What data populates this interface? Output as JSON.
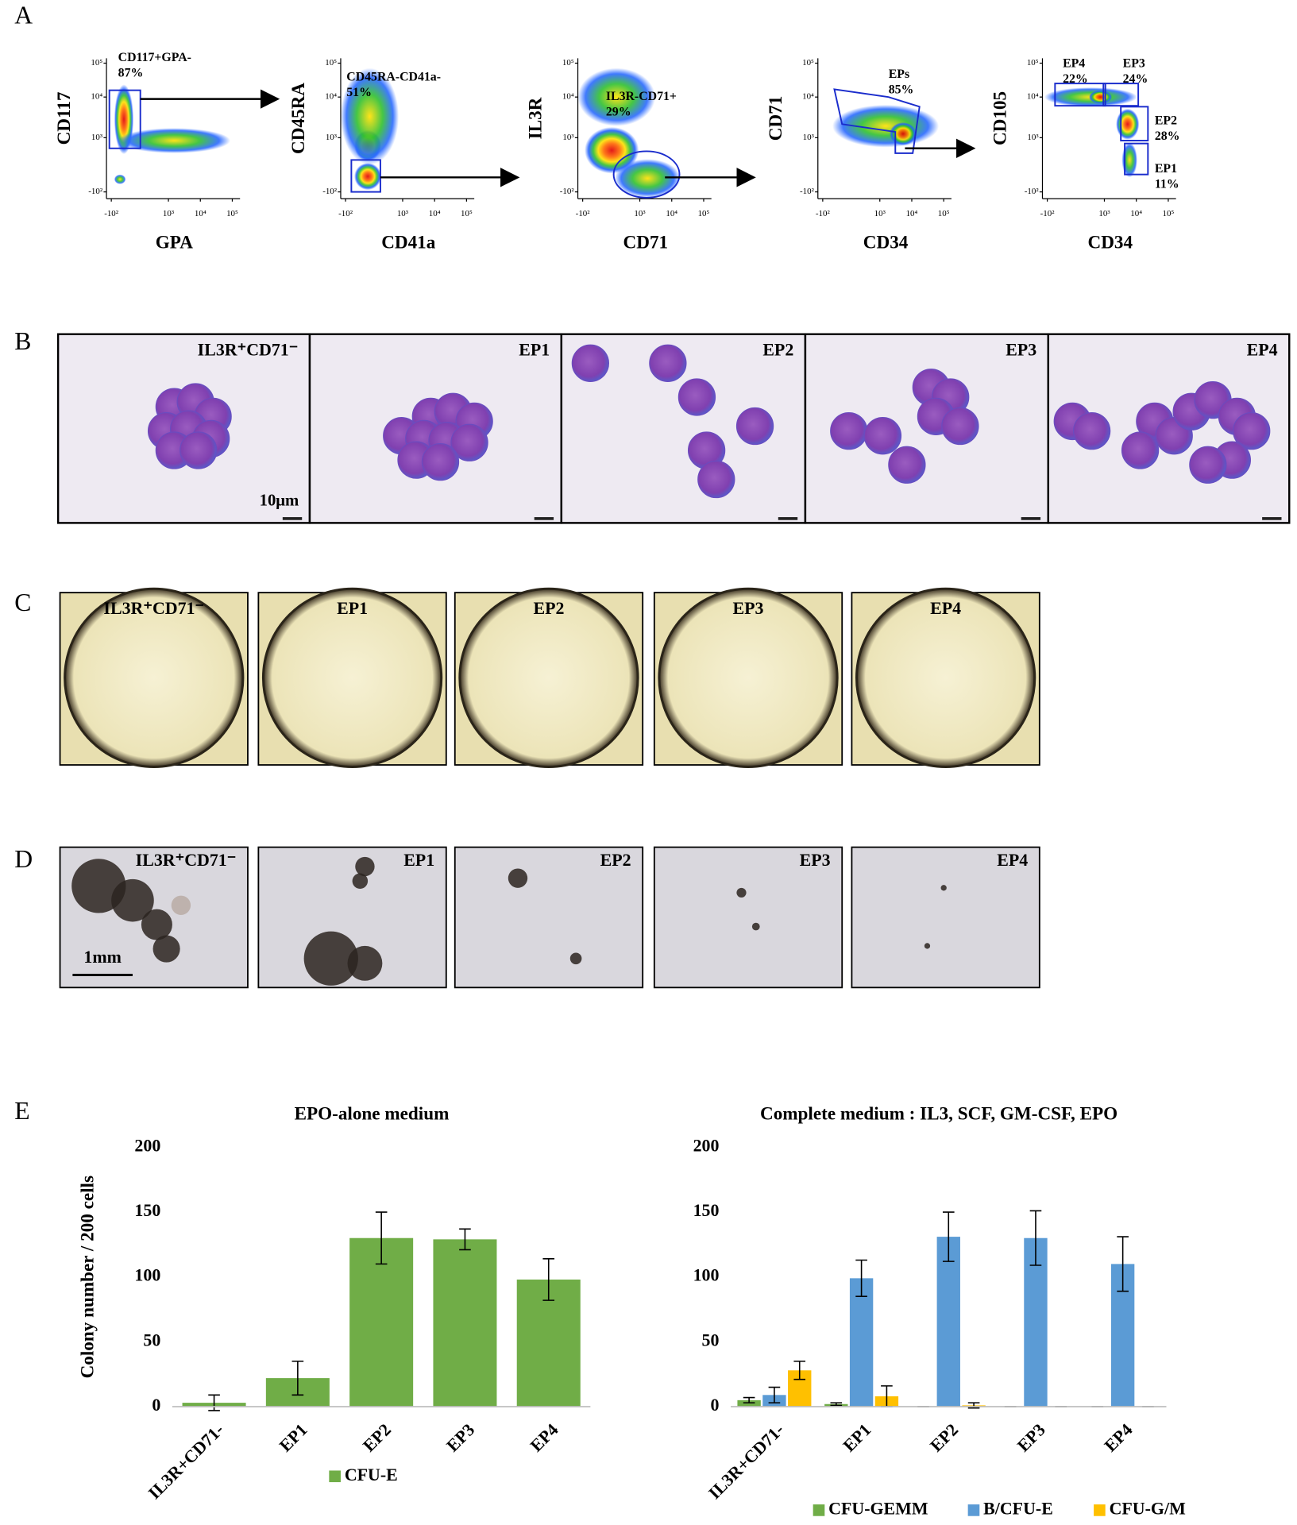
{
  "panel_labels": [
    "A",
    "B",
    "C",
    "D",
    "E"
  ],
  "panel_a": {
    "yticks": [
      "10⁵",
      "10⁴",
      "10³",
      "-10²"
    ],
    "xticks": [
      "-10²",
      "10³",
      "10⁴",
      "10⁵"
    ],
    "plots": [
      {
        "y_label": "CD117",
        "x_label": "GPA",
        "gates": [
          {
            "label": "CD117+GPA-",
            "percent": "87%"
          }
        ]
      },
      {
        "y_label": "CD45RA",
        "x_label": "CD41a",
        "gates": [
          {
            "label": "CD45RA-CD41a-",
            "percent": "51%"
          }
        ]
      },
      {
        "y_label": "IL3R",
        "x_label": "CD71",
        "gates": [
          {
            "label": "IL3R-CD71+",
            "percent": "29%"
          }
        ]
      },
      {
        "y_label": "CD71",
        "x_label": "CD34",
        "gates": [
          {
            "label": "EPs",
            "percent": "85%"
          }
        ]
      },
      {
        "y_label": "CD105",
        "x_label": "CD34",
        "gates": [
          {
            "label": "EP4",
            "percent": "22%"
          },
          {
            "label": "EP3",
            "percent": "24%"
          },
          {
            "label": "EP2",
            "percent": "28%"
          },
          {
            "label": "EP1",
            "percent": "11%"
          }
        ]
      }
    ]
  },
  "panel_b": {
    "images": [
      "IL3R⁺CD71⁻",
      "EP1",
      "EP2",
      "EP3",
      "EP4"
    ],
    "scale_bar": "10μm"
  },
  "panel_c": {
    "images": [
      "IL3R⁺CD71⁻",
      "EP1",
      "EP2",
      "EP3",
      "EP4"
    ]
  },
  "panel_d": {
    "images": [
      "IL3R⁺CD71⁻",
      "EP1",
      "EP2",
      "EP3",
      "EP4"
    ],
    "scale_bar": "1mm"
  },
  "chart_data": [
    {
      "type": "bar",
      "title": "EPO-alone medium",
      "y_label": "Colony number / 200 cells",
      "categories": [
        "IL3R+CD71-",
        "EP1",
        "EP2",
        "EP3",
        "EP4"
      ],
      "series": [
        {
          "name": "CFU-E",
          "color": "#70ad47",
          "values": [
            3,
            22,
            130,
            129,
            98
          ],
          "errors": [
            6,
            13,
            20,
            8,
            16
          ]
        }
      ],
      "ylim": [
        0,
        200
      ],
      "yticks": [
        0,
        50,
        100,
        150,
        200
      ],
      "legend": "bottom"
    },
    {
      "type": "bar",
      "title": "Complete medium : IL3, SCF, GM-CSF, EPO",
      "categories": [
        "IL3R+CD71-",
        "EP1",
        "EP2",
        "EP3",
        "EP4"
      ],
      "series": [
        {
          "name": "CFU-GEMM",
          "color": "#70ad47",
          "values": [
            5,
            2,
            0,
            0,
            0
          ],
          "errors": [
            2,
            1,
            0,
            0,
            0
          ]
        },
        {
          "name": "B/CFU-E",
          "color": "#5b9bd5",
          "values": [
            9,
            99,
            131,
            130,
            110
          ],
          "errors": [
            6,
            14,
            19,
            21,
            21
          ]
        },
        {
          "name": "CFU-G/M",
          "color": "#ffc000",
          "values": [
            28,
            8,
            1,
            0,
            0
          ],
          "errors": [
            7,
            8,
            2,
            0,
            0
          ]
        }
      ],
      "ylim": [
        0,
        200
      ],
      "yticks": [
        0,
        50,
        100,
        150,
        200
      ],
      "legend": "bottom"
    }
  ]
}
